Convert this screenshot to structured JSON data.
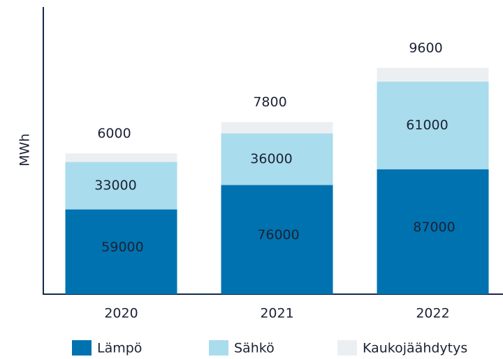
{
  "chart_data": {
    "type": "stacked_bar",
    "y_label": "MWh",
    "categories": [
      "2020",
      "2021",
      "2022"
    ],
    "series": [
      {
        "name": "Lämpö",
        "color": "#0072b0",
        "values": [
          59000,
          76000,
          87000
        ]
      },
      {
        "name": "Sähkö",
        "color": "#a9dcec",
        "values": [
          33000,
          36000,
          61000
        ]
      },
      {
        "name": "Kaukojäähdytys",
        "color": "#eceff1",
        "values": [
          6000,
          7800,
          9600
        ]
      }
    ],
    "ylim": [
      0,
      200000
    ]
  }
}
